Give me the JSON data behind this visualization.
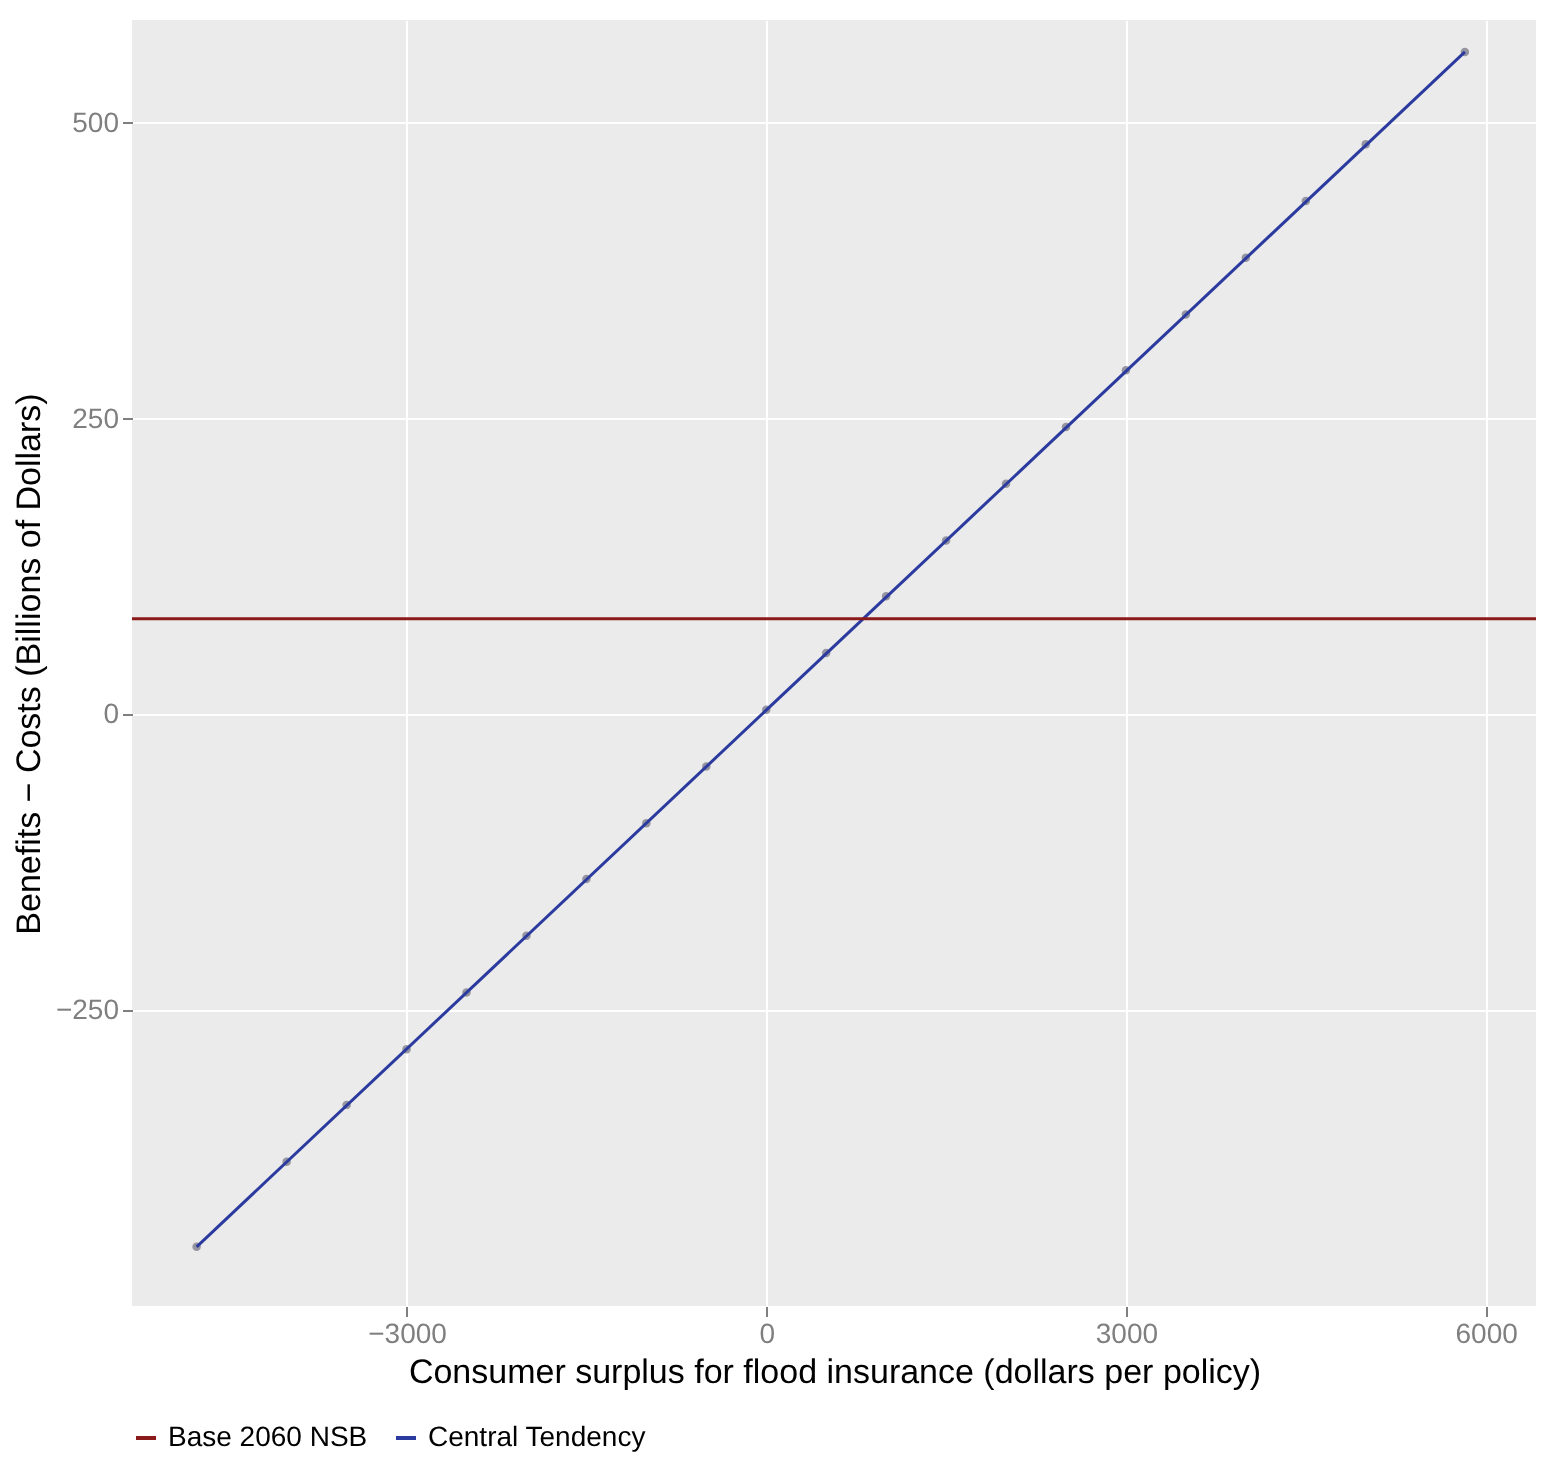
{
  "chart_data": {
    "type": "scatter",
    "xlabel": "Consumer surplus for flood insurance (dollars per policy)",
    "ylabel": "Benefits − Costs (Billions of Dollars)",
    "xlim": [
      -5290,
      6420
    ],
    "ylim": [
      -500,
      587
    ],
    "xticks": [
      -3000,
      0,
      3000,
      6000
    ],
    "yticks": [
      -250,
      0,
      250,
      500
    ],
    "grid": true,
    "legend": "bottom",
    "series": [
      {
        "color": "#7f7f8f",
        "marker": "circle",
        "x": [
          -4751,
          -4000,
          -3500,
          -3000,
          -2500,
          -2000,
          -1500,
          -1000,
          -500,
          0,
          500,
          1000,
          1500,
          2000,
          2500,
          3000,
          3500,
          4000,
          4500,
          5000,
          5827
        ],
        "values": [
          -450,
          -378,
          -330,
          -283,
          -235,
          -187,
          -139,
          -92,
          -44,
          4,
          52,
          100,
          147,
          195,
          243,
          291,
          338,
          386,
          434,
          482,
          560
        ]
      },
      {
        "type": "line",
        "name": "Central Tendency",
        "color": "#2b3a9e",
        "line_style": "solid",
        "x": [
          -4751,
          5827
        ],
        "values": [
          -450,
          560
        ]
      }
    ],
    "ref_lines": [
      {
        "axis": "y",
        "value": 81,
        "label": "Base 2060 NSB",
        "color": "#8b1a1a",
        "line_style": "solid"
      }
    ]
  }
}
